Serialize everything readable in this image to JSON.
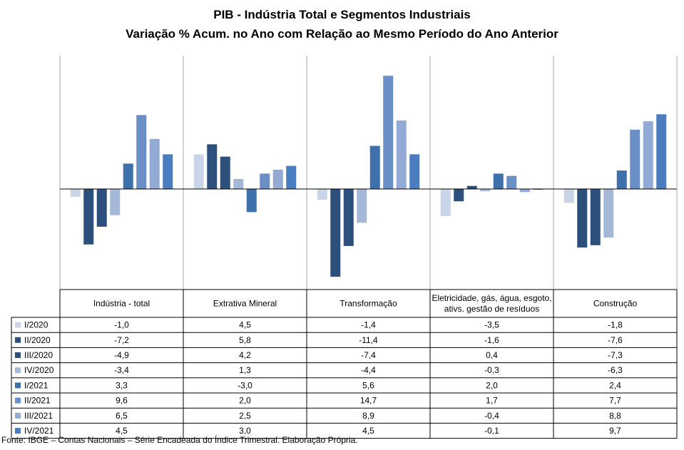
{
  "title": "PIB - Indústria Total e Segmentos Industriais",
  "subtitle": "Variação % Acum. no Ano com Relação ao Mesmo Período do Ano Anterior",
  "source": "Fonte: IBGE – Contas Nacionais – Série Encadeada do Índice Trimestral. Elaboração Própria.",
  "chart_data": {
    "type": "bar",
    "categories": [
      "Indústria - total",
      "Extrativa Mineral",
      "Transformação",
      "Eletricidade, gás, água, esgoto, ativs. gestão de resíduos",
      "Construção"
    ],
    "category_lines": [
      [
        "Indústria - total"
      ],
      [
        "Extrativa Mineral"
      ],
      [
        "Transformação"
      ],
      [
        "Eletricidade, gás, água, esgoto,",
        "ativs. gestão de resíduos"
      ],
      [
        "Construção"
      ]
    ],
    "ylim": [
      -14,
      14
    ],
    "grid": false,
    "legend": "bottom-left (data table)",
    "series": [
      {
        "name": "I/2020",
        "color": "#c9d4e6",
        "values": [
          -1.0,
          4.5,
          -1.4,
          -3.5,
          -1.8
        ],
        "labels": [
          "-1,0",
          "4,5",
          "-1,4",
          "-3,5",
          "-1,8"
        ]
      },
      {
        "name": "II/2020",
        "color": "#2c4f7c",
        "values": [
          -7.2,
          5.8,
          -11.4,
          -1.6,
          -7.6
        ],
        "labels": [
          "-7,2",
          "5,8",
          "-11,4",
          "-1,6",
          "-7,6"
        ]
      },
      {
        "name": "III/2020",
        "color": "#2c4f7c",
        "values": [
          -4.9,
          4.2,
          -7.4,
          0.4,
          -7.3
        ],
        "labels": [
          "-4,9",
          "4,2",
          "-7,4",
          "0,4",
          "-7,3"
        ]
      },
      {
        "name": "IV/2020",
        "color": "#a5b8d8",
        "values": [
          -3.4,
          1.3,
          -4.4,
          -0.3,
          -6.3
        ],
        "labels": [
          "-3,4",
          "1,3",
          "-4,4",
          "-0,3",
          "-6,3"
        ]
      },
      {
        "name": "I/2021",
        "color": "#3e70ac",
        "values": [
          3.3,
          -3.0,
          5.6,
          2.0,
          2.4
        ],
        "labels": [
          "3,3",
          "-3,0",
          "5,6",
          "2,0",
          "2,4"
        ]
      },
      {
        "name": "II/2021",
        "color": "#6a8fc6",
        "values": [
          9.6,
          2.0,
          14.7,
          1.7,
          7.7
        ],
        "labels": [
          "9,6",
          "2,0",
          "14,7",
          "1,7",
          "7,7"
        ]
      },
      {
        "name": "III/2021",
        "color": "#93aad4",
        "values": [
          6.5,
          2.5,
          8.9,
          -0.4,
          8.8
        ],
        "labels": [
          "6,5",
          "2,5",
          "8,9",
          "-0,4",
          "8,8"
        ]
      },
      {
        "name": "IV/2021",
        "color": "#4a7dbf",
        "values": [
          4.5,
          3.0,
          4.5,
          -0.1,
          9.7
        ],
        "labels": [
          "4,5",
          "3,0",
          "4,5",
          "-0,1",
          "9,7"
        ]
      }
    ]
  }
}
